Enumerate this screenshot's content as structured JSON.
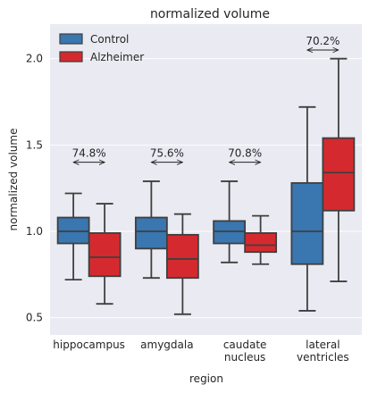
{
  "chart_data": {
    "type": "box",
    "title": "normalized volume",
    "xlabel": "region",
    "ylabel": "normalized volume",
    "ylim": [
      0.4,
      2.2
    ],
    "yticks": [
      "0.5",
      "1.0",
      "1.5",
      "2.0"
    ],
    "ytick_values": [
      0.5,
      1.0,
      1.5,
      2.0
    ],
    "grid": true,
    "legend_position": "top-left",
    "categories": [
      [
        "hippocampus"
      ],
      [
        "amygdala"
      ],
      [
        "caudate",
        "nucleus"
      ],
      [
        "lateral",
        "ventricles"
      ]
    ],
    "series": [
      {
        "name": "Control",
        "color": "#3a76af",
        "boxes": [
          {
            "whisker_low": 0.72,
            "q1": 0.93,
            "median": 1.0,
            "q3": 1.08,
            "whisker_high": 1.22
          },
          {
            "whisker_low": 0.73,
            "q1": 0.9,
            "median": 1.0,
            "q3": 1.08,
            "whisker_high": 1.29
          },
          {
            "whisker_low": 0.82,
            "q1": 0.93,
            "median": 1.0,
            "q3": 1.06,
            "whisker_high": 1.29
          },
          {
            "whisker_low": 0.54,
            "q1": 0.81,
            "median": 1.0,
            "q3": 1.28,
            "whisker_high": 1.72
          }
        ]
      },
      {
        "name": "Alzheimer",
        "color": "#d42a2f",
        "boxes": [
          {
            "whisker_low": 0.58,
            "q1": 0.74,
            "median": 0.85,
            "q3": 0.99,
            "whisker_high": 1.16
          },
          {
            "whisker_low": 0.52,
            "q1": 0.73,
            "median": 0.84,
            "q3": 0.98,
            "whisker_high": 1.1
          },
          {
            "whisker_low": 0.81,
            "q1": 0.88,
            "median": 0.92,
            "q3": 0.99,
            "whisker_high": 1.09
          },
          {
            "whisker_low": 0.71,
            "q1": 1.12,
            "median": 1.34,
            "q3": 1.54,
            "whisker_high": 2.0
          }
        ]
      }
    ],
    "annotations": [
      {
        "text": "74.8%",
        "y": 1.4
      },
      {
        "text": "75.6%",
        "y": 1.4
      },
      {
        "text": "70.8%",
        "y": 1.4
      },
      {
        "text": "70.2%",
        "y": 2.05
      }
    ]
  }
}
